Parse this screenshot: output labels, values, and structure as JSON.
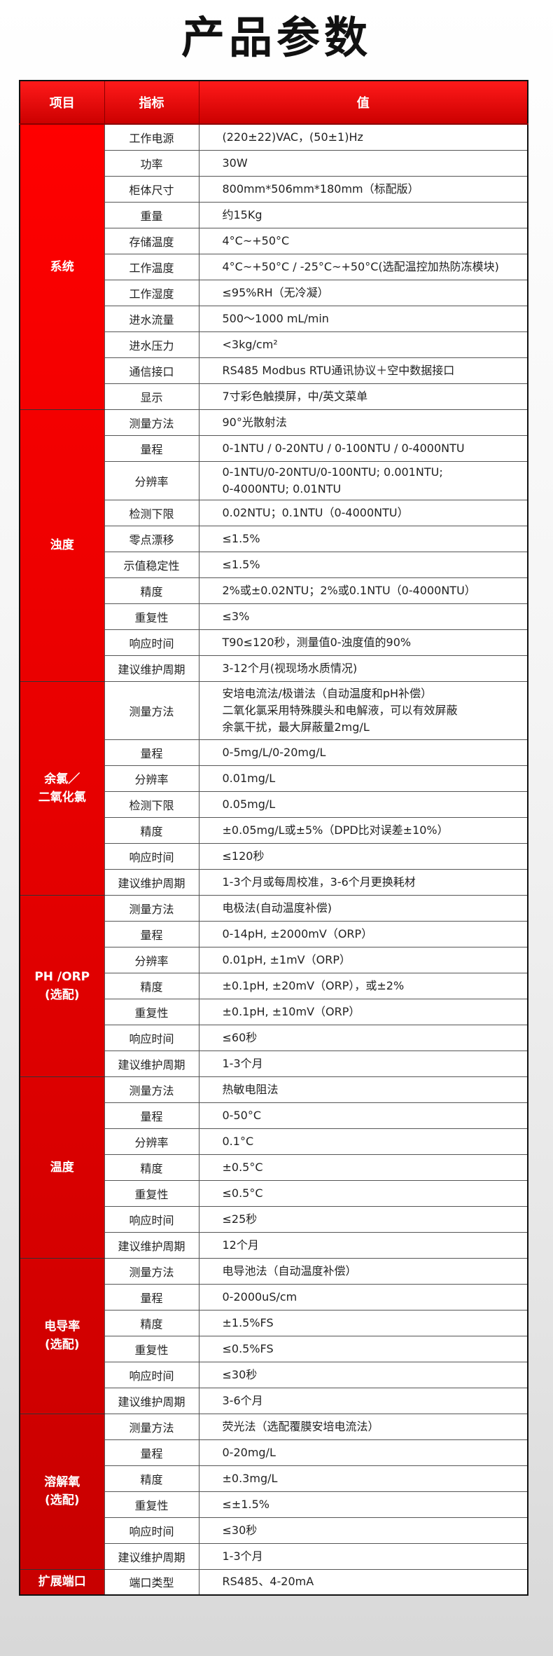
{
  "title": "产品参数",
  "header": {
    "col1": "项目",
    "col2": "指标",
    "col3": "值"
  },
  "colors": {
    "accent_top": "#ff0000",
    "accent_bottom": "#c80000"
  },
  "groups": [
    {
      "name": "系统",
      "rows": [
        {
          "metric": "工作电源",
          "value": [
            "(220±22)VAC，(50±1)Hz"
          ]
        },
        {
          "metric": "功率",
          "value": [
            "30W"
          ]
        },
        {
          "metric": "柜体尺寸",
          "value": [
            "800mm*506mm*180mm（标配版）"
          ]
        },
        {
          "metric": "重量",
          "value": [
            "约15Kg"
          ]
        },
        {
          "metric": "存储温度",
          "value": [
            "4°C~+50°C"
          ]
        },
        {
          "metric": "工作温度",
          "value": [
            "4°C~+50°C / -25°C~+50°C(选配温控加热防冻模块)"
          ]
        },
        {
          "metric": "工作湿度",
          "value": [
            "≤95%RH（无冷凝）"
          ]
        },
        {
          "metric": "进水流量",
          "value": [
            "500〜1000 mL/min"
          ]
        },
        {
          "metric": "进水压力",
          "value": [
            "<3kg/cm²"
          ]
        },
        {
          "metric": "通信接口",
          "value": [
            "RS485 Modbus RTU通讯协议＋空中数据接口"
          ]
        },
        {
          "metric": "显示",
          "value": [
            "7寸彩色触摸屏，中/英文菜单"
          ]
        }
      ]
    },
    {
      "name": "浊度",
      "rows": [
        {
          "metric": "测量方法",
          "value": [
            "90°光散射法"
          ]
        },
        {
          "metric": "量程",
          "value": [
            "0-1NTU / 0-20NTU / 0-100NTU / 0-4000NTU"
          ]
        },
        {
          "metric": "分辨率",
          "value": [
            "0-1NTU/0-20NTU/0-100NTU; 0.001NTU;",
            "0-4000NTU; 0.01NTU"
          ]
        },
        {
          "metric": "检测下限",
          "value": [
            "0.02NTU；0.1NTU（0-4000NTU）"
          ]
        },
        {
          "metric": "零点漂移",
          "value": [
            "≤1.5%"
          ]
        },
        {
          "metric": "示值稳定性",
          "value": [
            "≤1.5%"
          ]
        },
        {
          "metric": "精度",
          "value": [
            "2%或±0.02NTU；2%或0.1NTU（0-4000NTU）"
          ]
        },
        {
          "metric": "重复性",
          "value": [
            "≤3%"
          ]
        },
        {
          "metric": "响应时间",
          "value": [
            "T90≤120秒，测量值0-浊度值的90%"
          ]
        },
        {
          "metric": "建议维护周期",
          "value": [
            "3-12个月(视现场水质情况)"
          ]
        }
      ]
    },
    {
      "name": "余氯／\n二氧化氯",
      "rows": [
        {
          "metric": "测量方法",
          "value": [
            "安培电流法/极谱法（自动温度和pH补偿）",
            "二氧化氯采用特殊膜头和电解液，可以有效屏蔽",
            "余氯干扰，最大屏蔽量2mg/L"
          ]
        },
        {
          "metric": "量程",
          "value": [
            "0-5mg/L/0-20mg/L"
          ]
        },
        {
          "metric": "分辨率",
          "value": [
            "0.01mg/L"
          ]
        },
        {
          "metric": "检测下限",
          "value": [
            "0.05mg/L"
          ]
        },
        {
          "metric": "精度",
          "value": [
            "±0.05mg/L或±5%（DPD比对误差±10%）"
          ]
        },
        {
          "metric": "响应时间",
          "value": [
            "≤120秒"
          ]
        },
        {
          "metric": "建议维护周期",
          "value": [
            "1-3个月或每周校准，3-6个月更换耗材"
          ]
        }
      ]
    },
    {
      "name": "PH /ORP\n(选配)",
      "rows": [
        {
          "metric": "测量方法",
          "value": [
            "电极法(自动温度补偿)"
          ]
        },
        {
          "metric": "量程",
          "value": [
            "0-14pH, ±2000mV（ORP）"
          ]
        },
        {
          "metric": "分辨率",
          "value": [
            "0.01pH, ±1mV（ORP）"
          ]
        },
        {
          "metric": "精度",
          "value": [
            "±0.1pH, ±20mV（ORP），或±2%"
          ]
        },
        {
          "metric": "重复性",
          "value": [
            "±0.1pH, ±10mV（ORP）"
          ]
        },
        {
          "metric": "响应时间",
          "value": [
            "≤60秒"
          ]
        },
        {
          "metric": "建议维护周期",
          "value": [
            "1-3个月"
          ]
        }
      ]
    },
    {
      "name": "温度",
      "rows": [
        {
          "metric": "测量方法",
          "value": [
            "热敏电阻法"
          ]
        },
        {
          "metric": "量程",
          "value": [
            "0-50°C"
          ]
        },
        {
          "metric": "分辨率",
          "value": [
            "0.1°C"
          ]
        },
        {
          "metric": "精度",
          "value": [
            "±0.5°C"
          ]
        },
        {
          "metric": "重复性",
          "value": [
            "≤0.5°C"
          ]
        },
        {
          "metric": "响应时间",
          "value": [
            "≤25秒"
          ]
        },
        {
          "metric": "建议维护周期",
          "value": [
            "12个月"
          ]
        }
      ]
    },
    {
      "name": "电导率\n(选配)",
      "rows": [
        {
          "metric": "测量方法",
          "value": [
            "电导池法（自动温度补偿）"
          ]
        },
        {
          "metric": "量程",
          "value": [
            "0-2000uS/cm"
          ]
        },
        {
          "metric": "精度",
          "value": [
            "±1.5%FS"
          ]
        },
        {
          "metric": "重复性",
          "value": [
            "≤0.5%FS"
          ]
        },
        {
          "metric": "响应时间",
          "value": [
            "≤30秒"
          ]
        },
        {
          "metric": "建议维护周期",
          "value": [
            "3-6个月"
          ]
        }
      ]
    },
    {
      "name": "溶解氧\n(选配)",
      "rows": [
        {
          "metric": "测量方法",
          "value": [
            "荧光法（选配覆膜安培电流法）"
          ]
        },
        {
          "metric": "量程",
          "value": [
            "0-20mg/L"
          ]
        },
        {
          "metric": "精度",
          "value": [
            "±0.3mg/L"
          ]
        },
        {
          "metric": "重复性",
          "value": [
            "≤±1.5%"
          ]
        },
        {
          "metric": "响应时间",
          "value": [
            "≤30秒"
          ]
        },
        {
          "metric": "建议维护周期",
          "value": [
            "1-3个月"
          ]
        }
      ]
    },
    {
      "name": "扩展端口",
      "rows": [
        {
          "metric": "端口类型",
          "value": [
            "RS485、4-20mA"
          ]
        }
      ]
    }
  ]
}
